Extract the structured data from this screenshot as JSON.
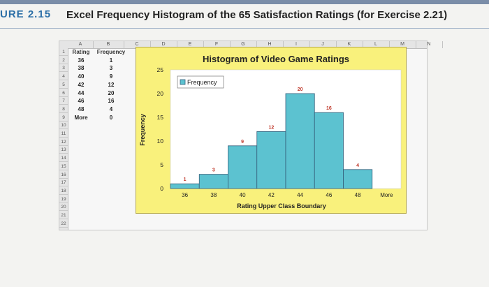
{
  "figure": {
    "label": "URE 2.15",
    "title": "Excel Frequency Histogram of the 65 Satisfaction Ratings (for Exercise 2.21)"
  },
  "sheet": {
    "columns": [
      "A",
      "B",
      "C",
      "D",
      "E",
      "F",
      "G",
      "H",
      "I",
      "J",
      "K",
      "L",
      "M",
      "N"
    ],
    "rows": [
      "1",
      "2",
      "3",
      "4",
      "5",
      "6",
      "7",
      "8",
      "9",
      "10",
      "11",
      "12",
      "13",
      "14",
      "15",
      "16",
      "17",
      "18",
      "19",
      "20",
      "21",
      "22"
    ],
    "table": {
      "header": [
        "Rating",
        "Frequency"
      ],
      "rows": [
        [
          "36",
          "1"
        ],
        [
          "38",
          "3"
        ],
        [
          "40",
          "9"
        ],
        [
          "42",
          "12"
        ],
        [
          "44",
          "20"
        ],
        [
          "46",
          "16"
        ],
        [
          "48",
          "4"
        ],
        [
          "More",
          "0"
        ]
      ]
    }
  },
  "chart_data": {
    "type": "bar",
    "title": "Histogram of Video Game Ratings",
    "xlabel": "Rating Upper Class Boundary",
    "ylabel": "Frequency",
    "categories": [
      "36",
      "38",
      "40",
      "42",
      "44",
      "46",
      "48",
      "More"
    ],
    "series": [
      {
        "name": "Frequency",
        "values": [
          1,
          3,
          9,
          12,
          20,
          16,
          4,
          0
        ]
      }
    ],
    "yticks": [
      "0",
      "5",
      "10",
      "15",
      "20",
      "25"
    ],
    "ylim": [
      0,
      25
    ],
    "legend": "top-left",
    "grid": false,
    "colors": {
      "bar": "#5cc2d0",
      "bar_edge": "#355f7a",
      "plot_bg": "#ffffff",
      "chart_bg": "#f9f17c"
    }
  }
}
